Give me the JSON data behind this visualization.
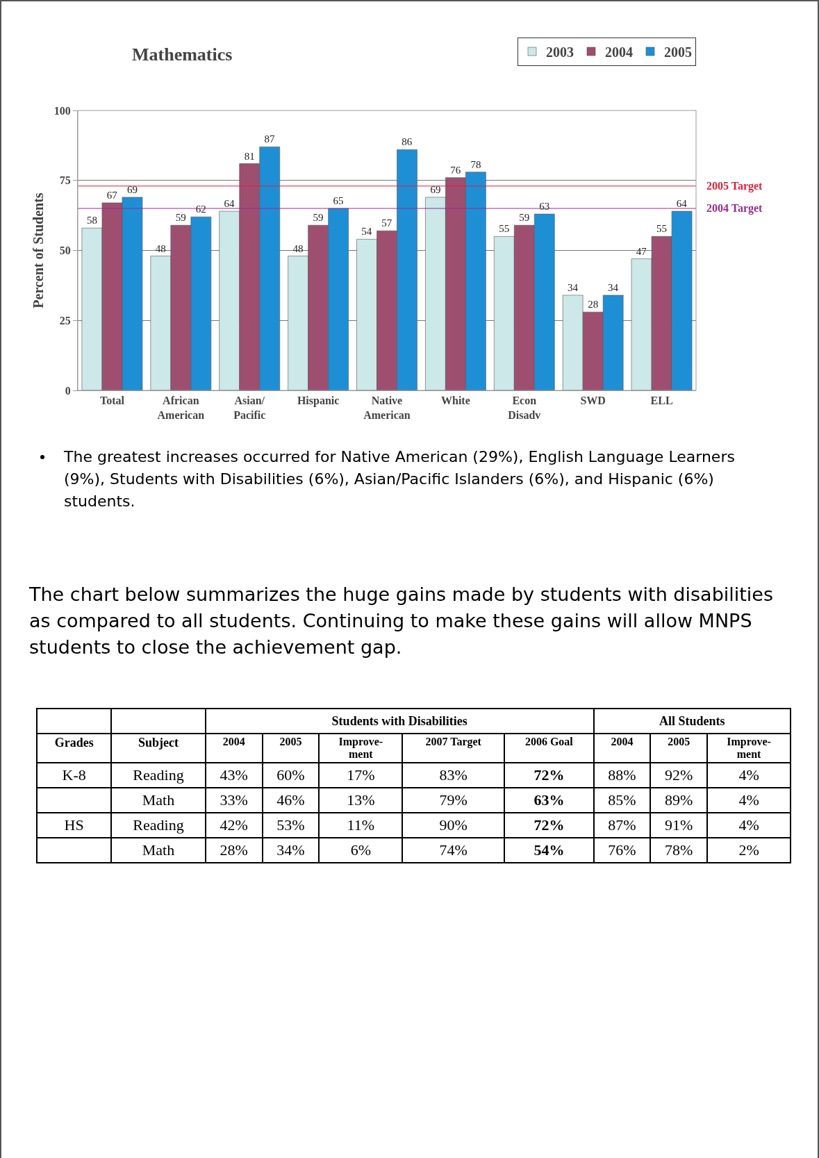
{
  "chart_data": [
    {
      "type": "bar",
      "title": "Mathematics",
      "ylabel": "Percent of Students",
      "categories": [
        "Total",
        "African\nAmerican",
        "Asian/\nPacific",
        "Hispanic",
        "Native\nAmerican",
        "White",
        "Econ\nDisadv",
        "SWD",
        "ELL"
      ],
      "series": [
        {
          "name": "2003",
          "color": "#cce8e8",
          "values": [
            58,
            48,
            64,
            48,
            54,
            69,
            55,
            34,
            47
          ]
        },
        {
          "name": "2004",
          "color": "#9e4f70",
          "values": [
            67,
            59,
            81,
            59,
            57,
            76,
            59,
            28,
            55
          ]
        },
        {
          "name": "2005",
          "color": "#1e8fd5",
          "values": [
            69,
            62,
            87,
            65,
            86,
            78,
            63,
            34,
            64
          ]
        }
      ],
      "ylim": [
        0,
        100
      ],
      "yticks": [
        0,
        25,
        50,
        75,
        100
      ],
      "grid": "y",
      "legend": "top right",
      "data_labels": true,
      "ref_lines": [
        {
          "axis": "y",
          "value": 73,
          "label": "2005 Target",
          "color": "#e0203a"
        },
        {
          "axis": "y",
          "value": 65,
          "label": "2004 Target",
          "color": "#9b2a8f"
        }
      ],
      "annotations": [
        "The greatest increases occurred for Native American (29%), English Language Learners (9%), Students with Disabilities (6%), Asian/Pacific Islanders (6%), and Hispanic (6%) students."
      ]
    },
    {
      "type": "other",
      "annotations": [
        "The chart below summarizes the huge gains made by students with disabilities as compared to all students.  Continuing to make these gains will allow MNPS students to close the achievement gap.",
        "Students with Disabilities",
        "All Students"
      ],
      "categories": [
        "Grades",
        "Subject",
        "2004",
        "2005",
        "Improve-ment",
        "2007 Target",
        "2006 Goal",
        "2004",
        "2005",
        "Improve-ment"
      ],
      "cell_labels": [
        [
          "K-8",
          "Reading",
          "43%",
          "60%",
          "17%",
          "83%",
          "72%",
          "88%",
          "92%",
          "4%"
        ],
        [
          null,
          "Math",
          "33%",
          "46%",
          "13%",
          "79%",
          "63%",
          "85%",
          "89%",
          "4%"
        ],
        [
          "HS",
          "Reading",
          "42%",
          "53%",
          "11%",
          "90%",
          "72%",
          "87%",
          "91%",
          "4%"
        ],
        [
          null,
          "Math",
          "28%",
          "34%",
          "6%",
          "74%",
          "54%",
          "76%",
          "78%",
          "2%"
        ]
      ]
    }
  ]
}
